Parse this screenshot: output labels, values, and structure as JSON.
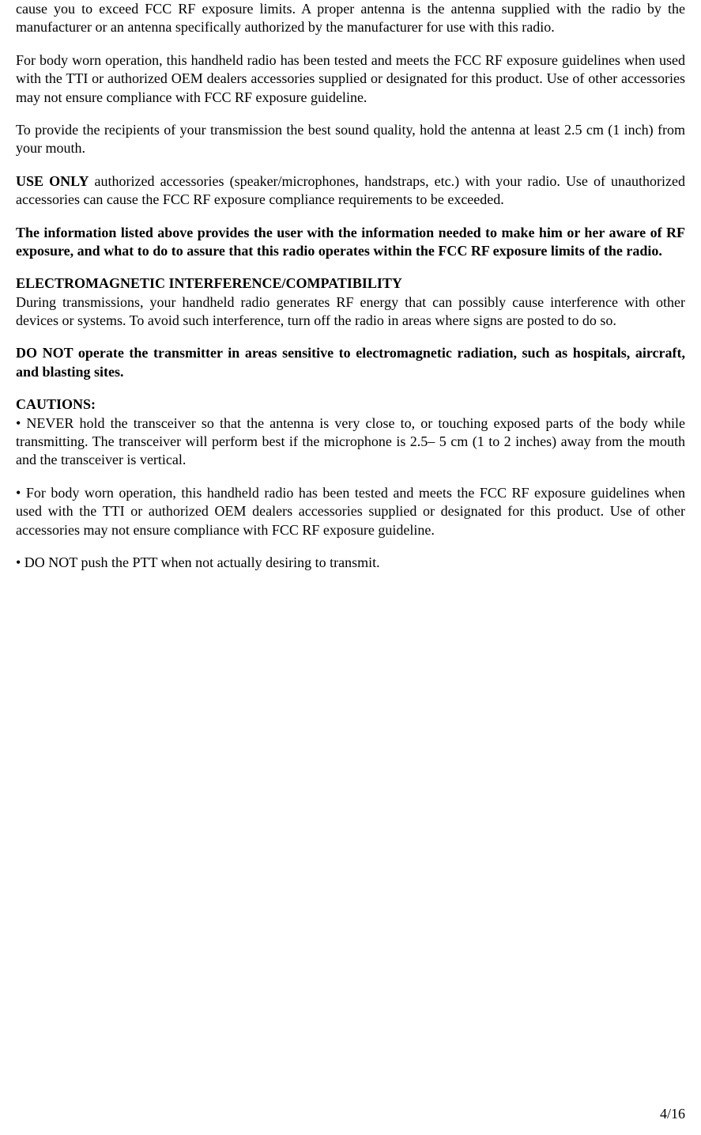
{
  "para1": "cause you to exceed FCC RF exposure limits. A proper antenna is the antenna supplied with the radio by the manufacturer or an antenna specifically authorized by the manufacturer for use with this radio.",
  "para2": "For body worn operation, this handheld radio has been tested and meets the FCC RF exposure guidelines when used with the TTI or authorized OEM dealers accessories supplied or designated for this product. Use of other accessories may not ensure compliance with FCC RF exposure guideline.",
  "para3": "To provide the recipients of your transmission the best sound quality, hold the antenna at least 2.5 cm (1 inch) from your mouth.",
  "para4_bold": "USE ONLY",
  "para4_rest": " authorized accessories (speaker/microphones, handstraps, etc.) with your radio. Use of unauthorized accessories can cause the FCC RF exposure compliance requirements to be exceeded.",
  "para5": "The information listed above provides the user with the information needed to make him or her aware of RF exposure, and what to do to assure that this radio operates within the FCC RF exposure limits of the radio.",
  "heading1": "ELECTROMAGNETIC INTERFERENCE/COMPATIBILITY",
  "para6": "During transmissions, your handheld radio generates RF energy that can possibly cause interference with other devices or systems. To avoid such interference, turn off the radio in areas where signs are posted to do so.",
  "para7": "DO NOT operate the transmitter in areas sensitive to electromagnetic radiation, such as hospitals, aircraft, and blasting sites.",
  "heading2": "CAUTIONS:",
  "para8": "• NEVER hold the transceiver so that the antenna is very close to, or touching exposed parts of the body while transmitting. The transceiver will perform best if the microphone is 2.5– 5 cm (1 to 2 inches) away from the mouth and the transceiver is vertical.",
  "para9": "• For body worn operation, this handheld radio has been tested and meets the FCC RF exposure guidelines when used with the TTI or authorized OEM dealers accessories supplied or designated for this product.  Use of other accessories may not ensure compliance with FCC RF exposure guideline.",
  "para10": "• DO NOT push the PTT when not actually desiring to transmit.",
  "pageNumber": "4/16"
}
